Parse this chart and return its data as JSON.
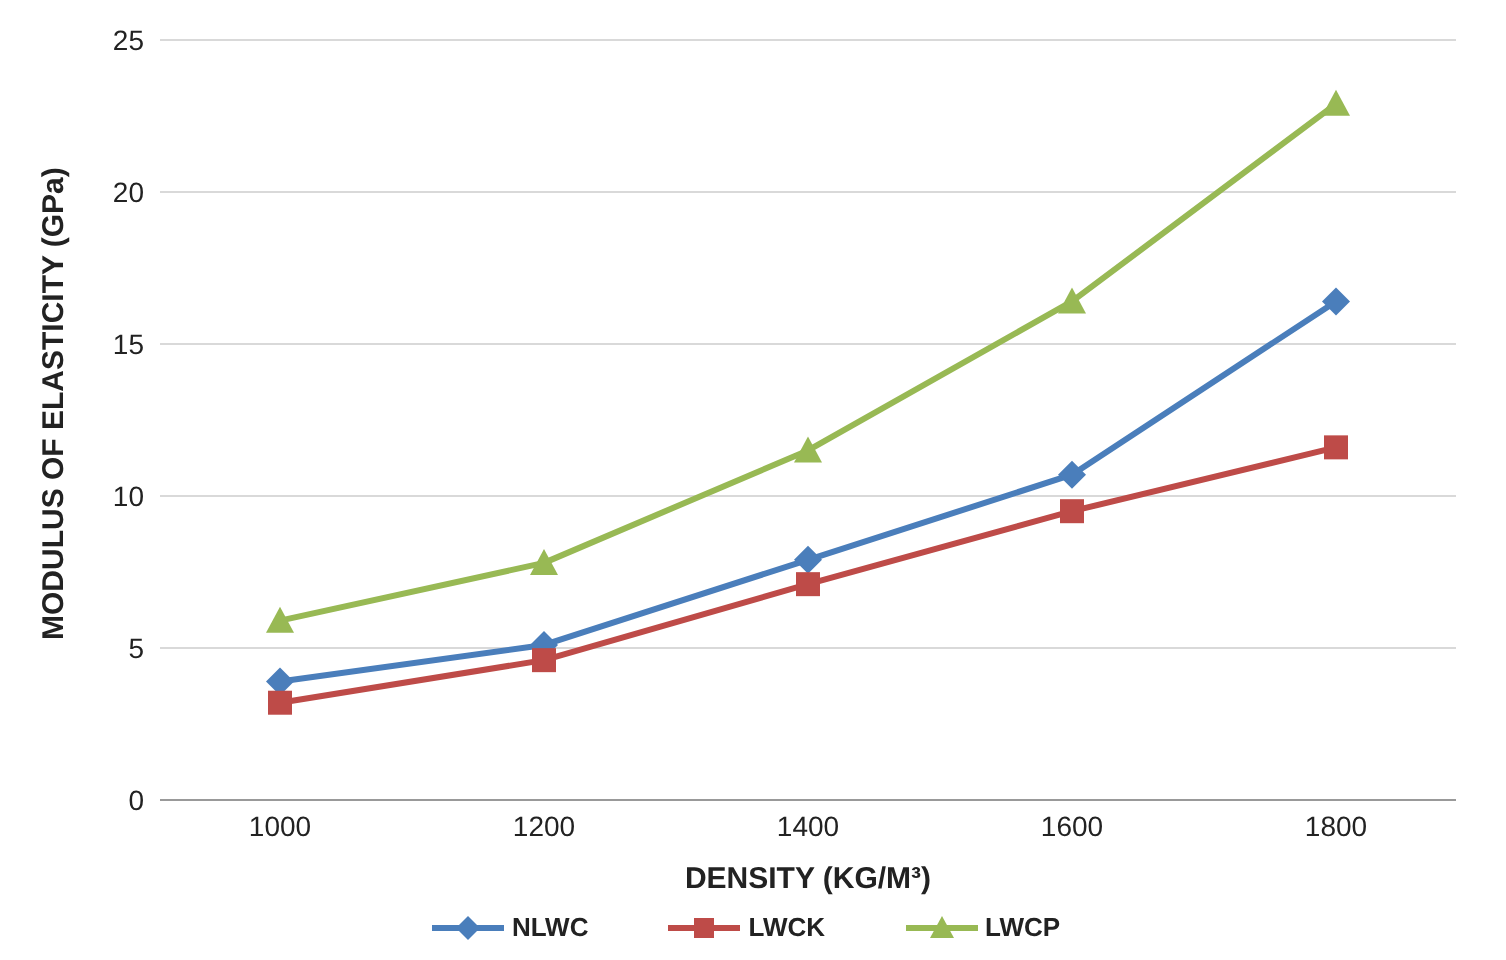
{
  "chart_data": {
    "type": "line",
    "xlabel": "DENSITY (KG/M³)",
    "ylabel": "MODULUS OF ELASTICITY (GPa)",
    "categories": [
      "1000",
      "1200",
      "1400",
      "1600",
      "1800"
    ],
    "series": [
      {
        "name": "NLWC",
        "color": "#4a7ebb",
        "marker": "diamond",
        "values": [
          3.9,
          5.1,
          7.9,
          10.7,
          16.4
        ]
      },
      {
        "name": "LWCK",
        "color": "#be4b48",
        "marker": "square",
        "values": [
          3.2,
          4.6,
          7.1,
          9.5,
          11.6
        ]
      },
      {
        "name": "LWCP",
        "color": "#98b954",
        "marker": "triangle",
        "values": [
          5.9,
          7.8,
          11.5,
          16.4,
          22.9
        ]
      }
    ],
    "ylim": [
      0,
      25
    ],
    "yticks": [
      0,
      5,
      10,
      15,
      20,
      25
    ],
    "grid": "y",
    "legend": "bottom"
  }
}
